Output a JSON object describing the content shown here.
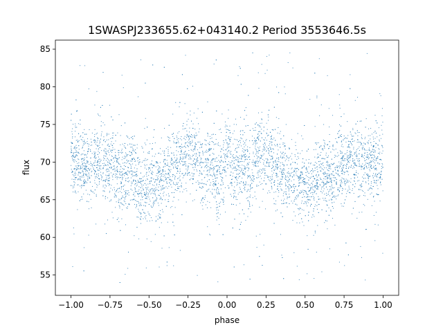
{
  "chart_data": {
    "type": "scatter",
    "title": "1SWASPJ233655.62+043140.2 Period 3553646.5s",
    "xlabel": "phase",
    "ylabel": "flux",
    "xlim": [
      -1.1,
      1.1
    ],
    "ylim": [
      52.3,
      86.2
    ],
    "x_ticks": [
      -1.0,
      -0.75,
      -0.5,
      -0.25,
      0.0,
      0.25,
      0.5,
      0.75,
      1.0
    ],
    "x_tick_labels": [
      "−1.00",
      "−0.75",
      "−0.50",
      "−0.25",
      "0.00",
      "0.25",
      "0.50",
      "0.75",
      "1.00"
    ],
    "y_ticks": [
      55,
      60,
      65,
      70,
      75,
      80,
      85
    ],
    "y_tick_labels": [
      "55",
      "60",
      "65",
      "70",
      "75",
      "80",
      "85"
    ],
    "grid": false,
    "legend": "none",
    "marker_color": "#1f77b4",
    "series": [
      {
        "phase_range": [
          -1.0,
          1.0
        ],
        "profile": {
          "x": [
            0.0,
            0.03,
            0.06,
            0.09,
            0.12,
            0.15,
            0.18,
            0.22,
            0.26,
            0.3,
            0.34,
            0.38,
            0.42,
            0.45,
            0.48,
            0.52,
            0.56,
            0.6,
            0.64,
            0.67,
            0.7,
            0.74,
            0.78,
            0.82,
            0.86,
            0.9,
            0.94,
            0.97,
            1.0
          ],
          "y": [
            70.5,
            69.0,
            68.0,
            69.5,
            70.0,
            67.5,
            70.5,
            71.0,
            71.5,
            70.0,
            69.5,
            68.5,
            67.5,
            67.0,
            67.5,
            66.5,
            66.0,
            69.0,
            68.5,
            67.5,
            68.5,
            70.0,
            69.5,
            70.5,
            70.0,
            69.5,
            69.5,
            70.0,
            70.5
          ]
        },
        "scatter_spread": 2.4,
        "flux_range": [
          54,
          84.5
        ]
      }
    ]
  }
}
